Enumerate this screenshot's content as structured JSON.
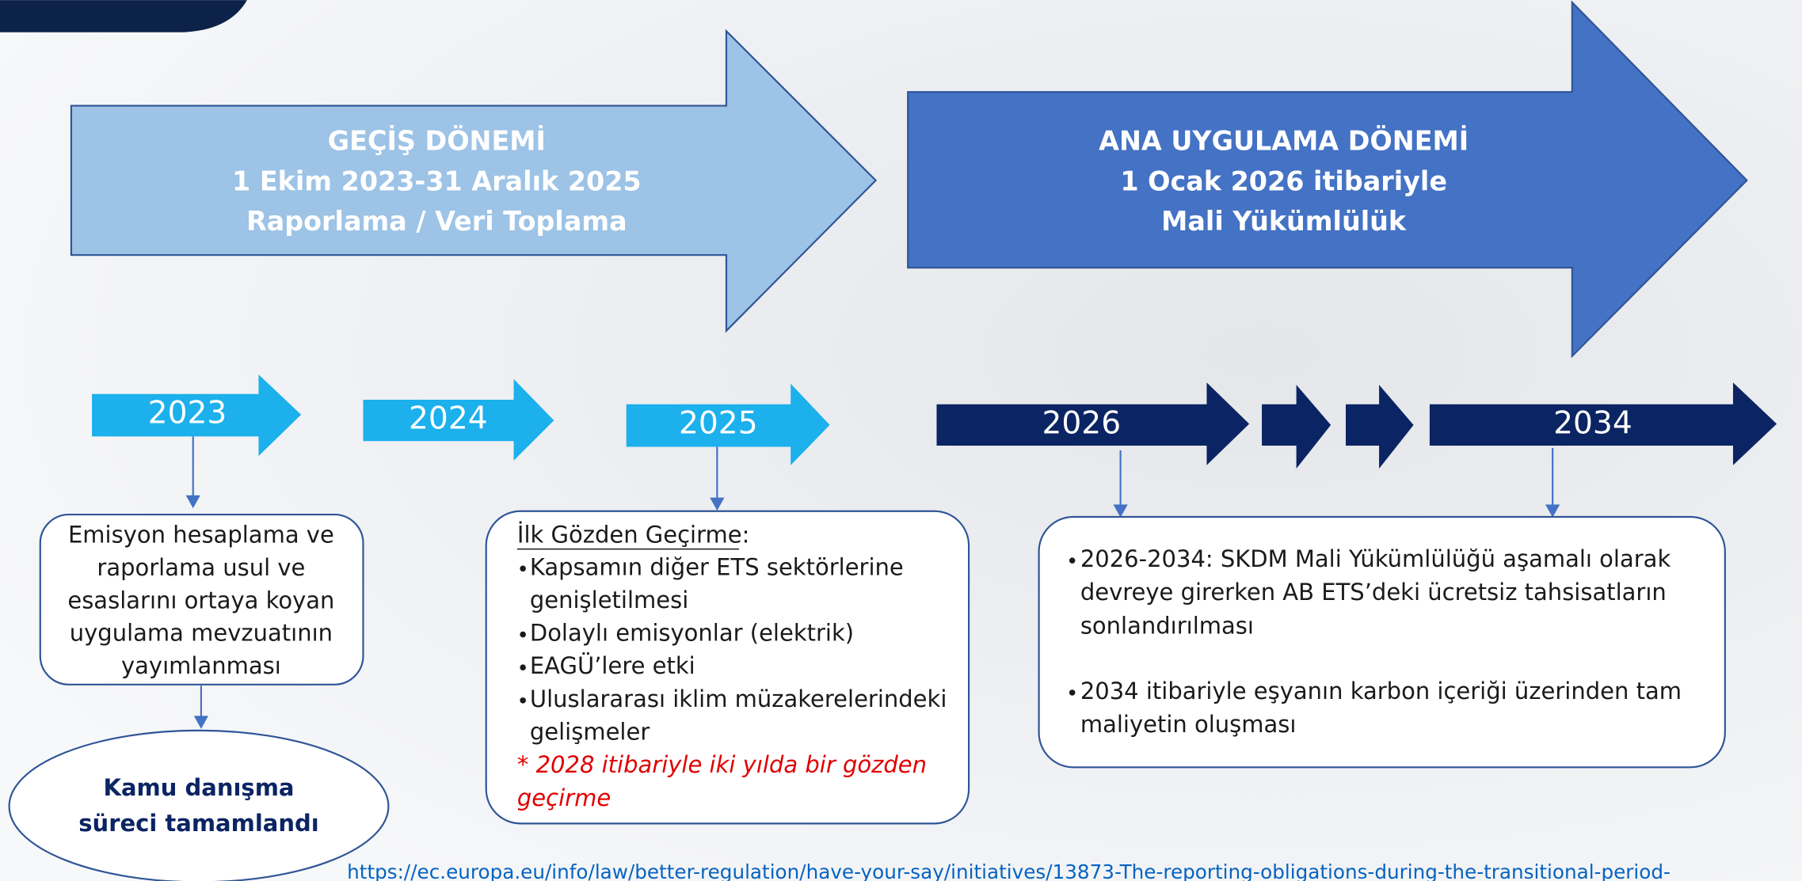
{
  "phases": [
    {
      "title": "GEÇİŞ DÖNEMİ",
      "dates": "1 Ekim 2023-31 Aralık 2025",
      "desc": "Raporlama / Veri Toplama"
    },
    {
      "title": "ANA UYGULAMA DÖNEMİ",
      "dates": "1 Ocak 2026 itibariyle",
      "desc": "Mali Yükümlülük"
    }
  ],
  "years": [
    "2023",
    "2024",
    "2025",
    "2026",
    "2034"
  ],
  "first_box": {
    "lines": [
      "Emisyon hesaplama ve",
      "raporlama usul ve",
      "esaslarını ortaya koyan",
      "uygulama mevzuatının",
      "yayımlanması"
    ]
  },
  "oval": {
    "lines": [
      "Kamu danışma",
      "süreci tamamlandı"
    ]
  },
  "review_box": {
    "heading": "İlk Gözden Geçirme:",
    "bullets": [
      [
        "Kapsamın diğer ETS sektörlerine",
        "genişletilmesi"
      ],
      [
        "Dolaylı emisyonlar (elektrik)"
      ],
      [
        "EAGÜ’lere etki"
      ],
      [
        "Uluslararası iklim müzakerelerindeki",
        "gelişmeler"
      ]
    ],
    "note": [
      "* 2028 itibariyle iki yılda bir gözden",
      "geçirme"
    ]
  },
  "final_box": {
    "bullets": [
      [
        "2026-2034: SKDM Mali Yükümlülüğü aşamalı olarak",
        "devreye girerken AB ETS’deki ücretsiz tahsisatların",
        "sonlandırılması"
      ],
      [
        "2034 itibariyle eşyanın karbon içeriği üzerinden tam",
        "maliyetin oluşması"
      ]
    ]
  },
  "link": "https://ec.europa.eu/info/law/better-regulation/have-your-say/initiatives/13873-The-reporting-obligations-during-the-transitional-period-"
}
